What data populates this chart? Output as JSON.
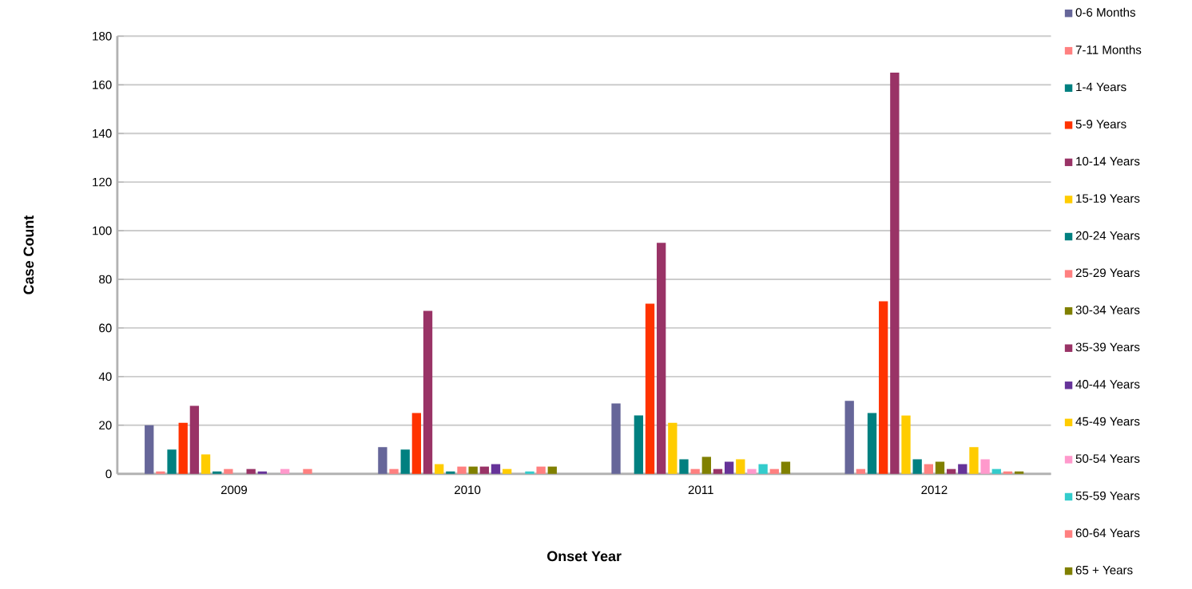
{
  "chart_data": {
    "type": "bar",
    "xlabel": "Onset Year",
    "ylabel": "Case Count",
    "categories": [
      "2009",
      "2010",
      "2011",
      "2012"
    ],
    "series": [
      {
        "name": "0-6 Months",
        "color": "#666699",
        "values": [
          20,
          11,
          29,
          30
        ]
      },
      {
        "name": "7-11 Months",
        "color": "#ff8080",
        "values": [
          1,
          2,
          null,
          2
        ]
      },
      {
        "name": "1-4 Years",
        "color": "#008080",
        "values": [
          10,
          10,
          24,
          25
        ]
      },
      {
        "name": "5-9 Years",
        "color": "#ff3300",
        "values": [
          21,
          25,
          70,
          71
        ]
      },
      {
        "name": "10-14 Years",
        "color": "#993366",
        "values": [
          28,
          67,
          95,
          165
        ]
      },
      {
        "name": "15-19 Years",
        "color": "#ffcc00",
        "values": [
          8,
          4,
          21,
          24
        ]
      },
      {
        "name": "20-24 Years",
        "color": "#008080",
        "values": [
          1,
          1,
          6,
          6
        ]
      },
      {
        "name": "25-29 Years",
        "color": "#ff8080",
        "values": [
          2,
          3,
          2,
          4
        ]
      },
      {
        "name": "30-34 Years",
        "color": "#808000",
        "values": [
          null,
          3,
          7,
          5
        ]
      },
      {
        "name": "35-39 Years",
        "color": "#993366",
        "values": [
          2,
          3,
          2,
          2
        ]
      },
      {
        "name": "40-44 Years",
        "color": "#663399",
        "values": [
          1,
          4,
          5,
          4
        ]
      },
      {
        "name": "45-49 Years",
        "color": "#ffcc00",
        "values": [
          null,
          2,
          6,
          11
        ]
      },
      {
        "name": "50-54 Years",
        "color": "#ff99cc",
        "values": [
          2,
          null,
          2,
          6
        ]
      },
      {
        "name": "55-59 Years",
        "color": "#33cccc",
        "values": [
          null,
          1,
          4,
          2
        ]
      },
      {
        "name": "60-64 Years",
        "color": "#ff8080",
        "values": [
          2,
          3,
          2,
          1
        ]
      },
      {
        "name": "65 + Years",
        "color": "#808000",
        "values": [
          null,
          3,
          5,
          1
        ]
      }
    ],
    "ylim": [
      0,
      180
    ],
    "yticks": [
      0,
      20,
      40,
      60,
      80,
      100,
      120,
      140,
      160,
      180
    ],
    "grid": "y",
    "legend": "right"
  }
}
